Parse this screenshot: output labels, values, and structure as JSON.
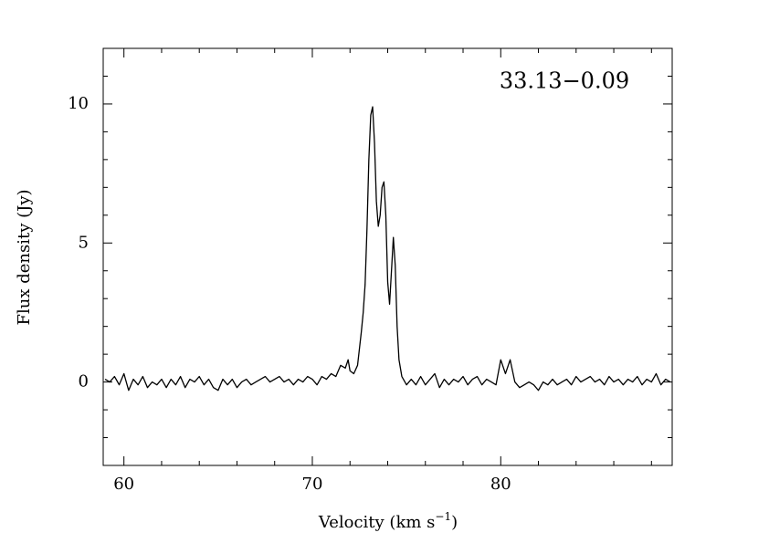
{
  "chart_data": {
    "type": "line",
    "annotation": "33.13−0.09",
    "xlabel": {
      "text": "Velocity (km s",
      "sup": "−1",
      "end": ")"
    },
    "ylabel": "Flux density (Jy)",
    "color": "#000000",
    "xlim": [
      58.9,
      89.1
    ],
    "xticks": [
      60,
      70,
      80
    ],
    "xminorticks": [
      62,
      64,
      66,
      68,
      72,
      74,
      76,
      78,
      82,
      84,
      86,
      88
    ],
    "ylim": [
      -3,
      12
    ],
    "yticks": [
      0,
      5,
      10
    ],
    "yminorticks": [
      -3,
      -2,
      -1,
      1,
      2,
      3,
      4,
      6,
      7,
      8,
      9,
      11
    ],
    "x": [
      59,
      59.25,
      59.5,
      59.75,
      60,
      60.25,
      60.5,
      60.75,
      61,
      61.25,
      61.5,
      61.75,
      62,
      62.25,
      62.5,
      62.75,
      63,
      63.25,
      63.5,
      63.75,
      64,
      64.25,
      64.5,
      64.75,
      65,
      65.25,
      65.5,
      65.75,
      66,
      66.25,
      66.5,
      66.75,
      67,
      67.25,
      67.5,
      67.75,
      68,
      68.25,
      68.5,
      68.75,
      69,
      69.25,
      69.5,
      69.75,
      70,
      70.25,
      70.5,
      70.75,
      71,
      71.25,
      71.5,
      71.75,
      71.9,
      72,
      72.2,
      72.4,
      72.6,
      72.7,
      72.8,
      72.9,
      73,
      73.1,
      73.2,
      73.3,
      73.4,
      73.5,
      73.6,
      73.7,
      73.8,
      73.9,
      74,
      74.1,
      74.2,
      74.3,
      74.4,
      74.5,
      74.6,
      74.75,
      75,
      75.25,
      75.5,
      75.75,
      76,
      76.25,
      76.5,
      76.75,
      77,
      77.25,
      77.5,
      77.75,
      78,
      78.25,
      78.5,
      78.75,
      79,
      79.25,
      79.5,
      79.75,
      80,
      80.25,
      80.5,
      80.75,
      81,
      81.25,
      81.5,
      81.75,
      82,
      82.25,
      82.5,
      82.75,
      83,
      83.25,
      83.5,
      83.75,
      84,
      84.25,
      84.5,
      84.75,
      85,
      85.25,
      85.5,
      85.75,
      86,
      86.25,
      86.5,
      86.75,
      87,
      87.25,
      87.5,
      87.75,
      88,
      88.25,
      88.5,
      88.75,
      89
    ],
    "values": [
      0.1,
      0,
      0.2,
      -0.1,
      0.3,
      -0.3,
      0.1,
      -0.1,
      0.2,
      -0.2,
      0,
      -0.1,
      0.1,
      -0.2,
      0.1,
      -0.1,
      0.2,
      -0.2,
      0.1,
      0,
      0.2,
      -0.1,
      0.1,
      -0.2,
      -0.3,
      0.1,
      -0.1,
      0.1,
      -0.2,
      0,
      0.1,
      -0.1,
      0,
      0.1,
      0.2,
      0,
      0.1,
      0.2,
      0,
      0.1,
      -0.1,
      0.1,
      0,
      0.2,
      0.1,
      -0.1,
      0.2,
      0.1,
      0.3,
      0.2,
      0.6,
      0.5,
      0.8,
      0.4,
      0.3,
      0.6,
      1.8,
      2.5,
      3.5,
      5.5,
      8,
      9.6,
      9.9,
      8.6,
      6.5,
      5.6,
      6,
      7,
      7.2,
      6,
      3.6,
      2.8,
      4,
      5.2,
      4.2,
      2,
      0.8,
      0.2,
      -0.1,
      0.1,
      -0.1,
      0.2,
      -0.1,
      0.1,
      0.3,
      -0.2,
      0.1,
      -0.1,
      0.1,
      0,
      0.2,
      -0.1,
      0.1,
      0.2,
      -0.1,
      0.1,
      0,
      -0.1,
      0.8,
      0.3,
      0.8,
      0,
      -0.2,
      -0.1,
      0,
      -0.1,
      -0.3,
      0,
      -0.1,
      0.1,
      -0.1,
      0,
      0.1,
      -0.1,
      0.2,
      0,
      0.1,
      0.2,
      0,
      0.1,
      -0.1,
      0.2,
      0,
      0.1,
      -0.1,
      0.1,
      0,
      0.2,
      -0.1,
      0.1,
      0,
      0.3,
      -0.1,
      0.1,
      0
    ]
  }
}
